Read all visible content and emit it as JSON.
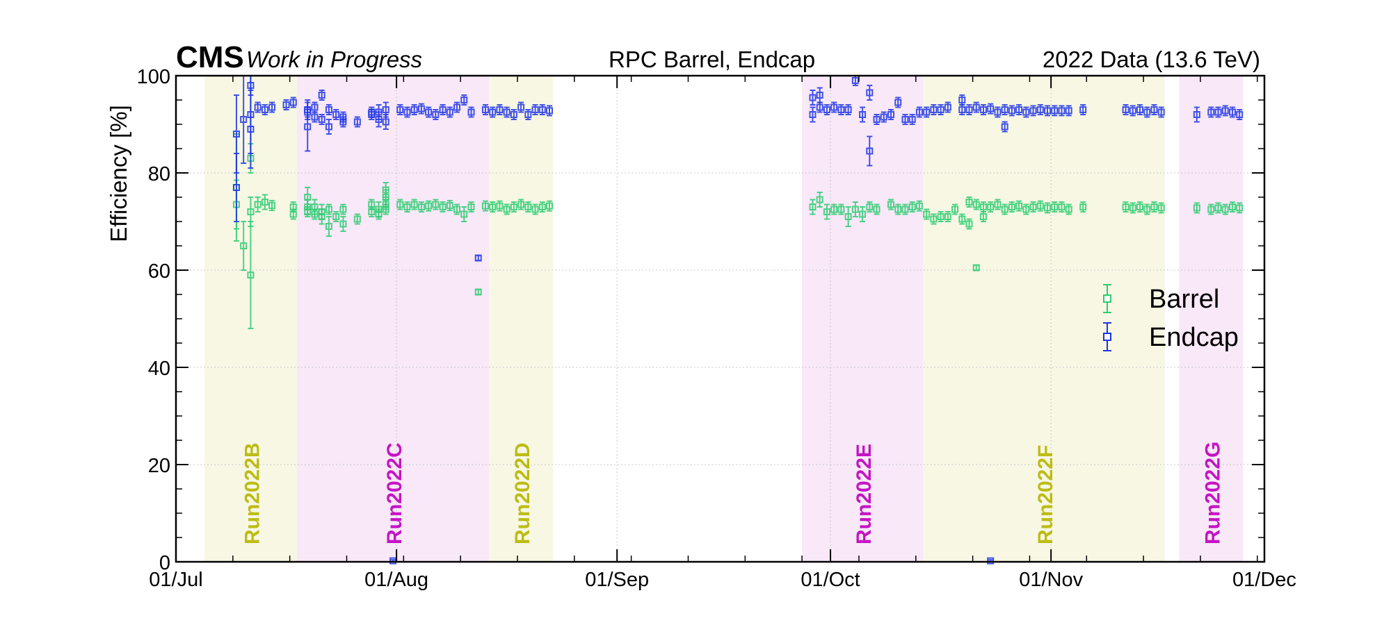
{
  "header": {
    "experiment": "CMS",
    "status": "Work in Progress",
    "energy": "2022 Data (13.6 TeV)"
  },
  "chart_data": {
    "type": "scatter",
    "title": "RPC Barrel, Endcap",
    "xlabel": "",
    "ylabel": "Efficiency [%]",
    "xlim": [
      "2022-07-01",
      "2022-12-01"
    ],
    "ylim": [
      0,
      100
    ],
    "x_ticks": [
      "01/Jul",
      "01/Aug",
      "01/Sep",
      "01/Oct",
      "01/Nov",
      "01/Dec"
    ],
    "y_ticks": [
      0,
      20,
      40,
      60,
      80,
      100
    ],
    "grid": true,
    "legend": {
      "position": "right",
      "entries": [
        "Barrel",
        "Endcap"
      ]
    },
    "run_periods": [
      {
        "name": "Run2022B",
        "start": "2022-07-05",
        "end": "2022-07-17",
        "color": "#bcbc14",
        "shade": "#f7f7e4"
      },
      {
        "name": "Run2022C",
        "start": "2022-07-18",
        "end": "2022-08-13",
        "color": "#c414c4",
        "shade": "#f8e8f8"
      },
      {
        "name": "Run2022D",
        "start": "2022-08-14",
        "end": "2022-08-22",
        "color": "#bcbc14",
        "shade": "#f7f7e4"
      },
      {
        "name": "Run2022E",
        "start": "2022-09-27",
        "end": "2022-10-13",
        "color": "#c414c4",
        "shade": "#f8e8f8"
      },
      {
        "name": "Run2022F",
        "start": "2022-10-14",
        "end": "2022-11-16",
        "color": "#bcbc14",
        "shade": "#f7f7e4"
      },
      {
        "name": "Run2022G",
        "start": "2022-11-19",
        "end": "2022-11-27",
        "color": "#c414c4",
        "shade": "#f8e8f8"
      }
    ],
    "series": [
      {
        "name": "Barrel",
        "color": "#2ecc71",
        "points": [
          [
            "2022-07-09",
            77,
            11
          ],
          [
            "2022-07-09",
            73.5,
            5
          ],
          [
            "2022-07-10",
            65,
            5
          ],
          [
            "2022-07-11",
            59,
            11
          ],
          [
            "2022-07-11",
            72,
            3
          ],
          [
            "2022-07-11",
            83,
            3
          ],
          [
            "2022-07-12",
            73.5,
            1.5
          ],
          [
            "2022-07-13",
            74,
            1.5
          ],
          [
            "2022-07-14",
            73.3,
            1
          ],
          [
            "2022-07-17",
            73,
            1
          ],
          [
            "2022-07-17",
            71.5,
            1
          ],
          [
            "2022-07-19",
            75,
            2
          ],
          [
            "2022-07-19",
            73,
            1.5
          ],
          [
            "2022-07-19",
            72,
            1
          ],
          [
            "2022-07-20",
            71.5,
            1
          ],
          [
            "2022-07-20",
            73,
            1.5
          ],
          [
            "2022-07-21",
            72,
            1.5
          ],
          [
            "2022-07-21",
            71,
            1.5
          ],
          [
            "2022-07-22",
            69,
            2
          ],
          [
            "2022-07-22",
            72.5,
            1
          ],
          [
            "2022-07-23",
            71,
            1
          ],
          [
            "2022-07-24",
            69.5,
            1.5
          ],
          [
            "2022-07-24",
            72.5,
            1
          ],
          [
            "2022-07-26",
            70.5,
            1
          ],
          [
            "2022-07-28",
            72,
            1
          ],
          [
            "2022-07-28",
            73.5,
            1
          ],
          [
            "2022-07-29",
            72.5,
            1.5
          ],
          [
            "2022-07-29",
            71.5,
            1
          ],
          [
            "2022-07-30",
            72.5,
            1
          ],
          [
            "2022-07-30",
            73.5,
            1
          ],
          [
            "2022-07-30",
            75,
            1.5
          ],
          [
            "2022-07-30",
            76.5,
            1.5
          ],
          [
            "2022-08-01",
            73.5,
            1
          ],
          [
            "2022-08-02",
            73,
            1
          ],
          [
            "2022-08-03",
            73.5,
            1
          ],
          [
            "2022-08-04",
            73,
            1
          ],
          [
            "2022-08-05",
            73.2,
            1
          ],
          [
            "2022-08-06",
            73.5,
            1
          ],
          [
            "2022-08-07",
            73,
            1
          ],
          [
            "2022-08-08",
            73.3,
            1
          ],
          [
            "2022-08-09",
            72.5,
            1
          ],
          [
            "2022-08-10",
            71.5,
            1.5
          ],
          [
            "2022-08-11",
            73,
            1
          ],
          [
            "2022-08-12",
            55.5,
            0.5
          ],
          [
            "2022-08-13",
            73.2,
            1
          ],
          [
            "2022-08-14",
            73,
            1
          ],
          [
            "2022-08-15",
            73.2,
            1
          ],
          [
            "2022-08-16",
            72.5,
            1
          ],
          [
            "2022-08-17",
            73,
            1
          ],
          [
            "2022-08-18",
            73.5,
            1
          ],
          [
            "2022-08-19",
            73,
            1
          ],
          [
            "2022-08-20",
            72.5,
            1
          ],
          [
            "2022-08-21",
            73,
            1
          ],
          [
            "2022-08-22",
            73.2,
            1
          ],
          [
            "2022-09-28",
            73,
            1.5
          ],
          [
            "2022-09-29",
            74.5,
            1.5
          ],
          [
            "2022-09-30",
            72,
            1.5
          ],
          [
            "2022-10-01",
            72.5,
            1
          ],
          [
            "2022-10-02",
            72.5,
            1
          ],
          [
            "2022-10-03",
            71,
            2
          ],
          [
            "2022-10-04",
            72.5,
            1.5
          ],
          [
            "2022-10-05",
            71.5,
            1.5
          ],
          [
            "2022-10-06",
            73,
            1
          ],
          [
            "2022-10-07",
            72.5,
            1
          ],
          [
            "2022-10-09",
            73.5,
            1
          ],
          [
            "2022-10-10",
            72.5,
            1
          ],
          [
            "2022-10-11",
            72.5,
            1
          ],
          [
            "2022-10-12",
            73,
            1
          ],
          [
            "2022-10-13",
            73.2,
            1
          ],
          [
            "2022-10-14",
            71.5,
            1
          ],
          [
            "2022-10-15",
            70.5,
            1
          ],
          [
            "2022-10-16",
            71,
            1
          ],
          [
            "2022-10-17",
            71,
            1
          ],
          [
            "2022-10-18",
            72.5,
            1
          ],
          [
            "2022-10-19",
            70.5,
            1
          ],
          [
            "2022-10-20",
            69.5,
            1
          ],
          [
            "2022-10-20",
            74,
            1
          ],
          [
            "2022-10-21",
            73.5,
            1
          ],
          [
            "2022-10-21",
            60.5,
            0.5
          ],
          [
            "2022-10-22",
            73,
            1
          ],
          [
            "2022-10-22",
            71,
            1
          ],
          [
            "2022-10-23",
            73,
            1
          ],
          [
            "2022-10-24",
            73.5,
            1
          ],
          [
            "2022-10-25",
            72.5,
            1
          ],
          [
            "2022-10-26",
            73,
            1
          ],
          [
            "2022-10-27",
            73.2,
            1
          ],
          [
            "2022-10-28",
            72.5,
            1
          ],
          [
            "2022-10-29",
            73,
            1
          ],
          [
            "2022-10-30",
            73.2,
            1
          ],
          [
            "2022-10-31",
            72.8,
            1
          ],
          [
            "2022-11-01",
            73,
            1
          ],
          [
            "2022-11-02",
            73,
            1
          ],
          [
            "2022-11-03",
            72.5,
            1
          ],
          [
            "2022-11-05",
            73,
            1
          ],
          [
            "2022-11-11",
            73,
            1
          ],
          [
            "2022-11-12",
            72.8,
            1
          ],
          [
            "2022-11-13",
            73,
            1
          ],
          [
            "2022-11-14",
            72.5,
            1
          ],
          [
            "2022-11-15",
            73,
            1
          ],
          [
            "2022-11-16",
            72.8,
            1
          ],
          [
            "2022-11-21",
            72.8,
            1
          ],
          [
            "2022-11-23",
            72.5,
            1
          ],
          [
            "2022-11-24",
            72.8,
            1
          ],
          [
            "2022-11-25",
            72.5,
            1
          ],
          [
            "2022-11-26",
            73,
            1
          ],
          [
            "2022-11-27",
            72.8,
            1
          ]
        ]
      },
      {
        "name": "Endcap",
        "color": "#1f35e6",
        "points": [
          [
            "2022-07-09",
            88,
            8
          ],
          [
            "2022-07-09",
            77,
            7
          ],
          [
            "2022-07-10",
            91,
            9
          ],
          [
            "2022-07-11",
            92,
            8
          ],
          [
            "2022-07-11",
            89,
            8
          ],
          [
            "2022-07-11",
            98,
            2
          ],
          [
            "2022-07-12",
            93.5,
            1
          ],
          [
            "2022-07-13",
            93,
            1
          ],
          [
            "2022-07-14",
            93.5,
            1
          ],
          [
            "2022-07-16",
            94,
            1
          ],
          [
            "2022-07-17",
            94.5,
            1
          ],
          [
            "2022-07-19",
            93,
            2
          ],
          [
            "2022-07-19",
            89.5,
            5
          ],
          [
            "2022-07-19",
            92.5,
            1
          ],
          [
            "2022-07-20",
            91.5,
            1
          ],
          [
            "2022-07-20",
            93.5,
            1
          ],
          [
            "2022-07-21",
            96,
            1
          ],
          [
            "2022-07-21",
            91,
            1
          ],
          [
            "2022-07-22",
            89.5,
            1.5
          ],
          [
            "2022-07-22",
            93,
            1
          ],
          [
            "2022-07-23",
            92,
            1
          ],
          [
            "2022-07-24",
            90.5,
            1
          ],
          [
            "2022-07-24",
            91.5,
            1
          ],
          [
            "2022-07-26",
            90.5,
            1
          ],
          [
            "2022-07-28",
            92,
            1
          ],
          [
            "2022-07-28",
            92.5,
            1
          ],
          [
            "2022-07-29",
            91,
            1.5
          ],
          [
            "2022-07-29",
            92.5,
            1.5
          ],
          [
            "2022-07-30",
            90.5,
            1.5
          ],
          [
            "2022-07-30",
            93,
            1.5
          ],
          [
            "2022-07-31",
            0.2,
            0.2
          ],
          [
            "2022-08-01",
            93,
            1
          ],
          [
            "2022-08-02",
            92.5,
            1
          ],
          [
            "2022-08-03",
            93,
            1
          ],
          [
            "2022-08-04",
            93.2,
            1
          ],
          [
            "2022-08-05",
            92.5,
            1
          ],
          [
            "2022-08-06",
            92,
            1
          ],
          [
            "2022-08-07",
            93,
            1
          ],
          [
            "2022-08-08",
            92.5,
            1
          ],
          [
            "2022-08-09",
            93.5,
            1
          ],
          [
            "2022-08-10",
            95,
            1
          ],
          [
            "2022-08-11",
            92.5,
            1
          ],
          [
            "2022-08-12",
            62.5,
            0.5
          ],
          [
            "2022-08-13",
            93,
            1
          ],
          [
            "2022-08-14",
            92.5,
            1
          ],
          [
            "2022-08-15",
            93,
            1
          ],
          [
            "2022-08-16",
            92.5,
            1
          ],
          [
            "2022-08-17",
            92,
            1
          ],
          [
            "2022-08-18",
            93.5,
            1
          ],
          [
            "2022-08-19",
            92,
            1
          ],
          [
            "2022-08-20",
            93,
            1
          ],
          [
            "2022-08-21",
            93,
            1
          ],
          [
            "2022-08-22",
            92.8,
            1
          ],
          [
            "2022-09-28",
            95.5,
            1.5
          ],
          [
            "2022-09-28",
            92,
            1.5
          ],
          [
            "2022-09-29",
            96,
            1.5
          ],
          [
            "2022-09-29",
            93.5,
            1
          ],
          [
            "2022-09-30",
            93,
            1
          ],
          [
            "2022-10-01",
            93.5,
            1
          ],
          [
            "2022-10-02",
            93,
            1
          ],
          [
            "2022-10-03",
            93,
            1
          ],
          [
            "2022-10-04",
            99,
            1
          ],
          [
            "2022-10-05",
            92,
            1.5
          ],
          [
            "2022-10-06",
            84.5,
            3
          ],
          [
            "2022-10-06",
            96.5,
            1.5
          ],
          [
            "2022-10-07",
            91,
            1
          ],
          [
            "2022-10-08",
            91.5,
            1
          ],
          [
            "2022-10-09",
            92,
            1
          ],
          [
            "2022-10-10",
            94.5,
            1
          ],
          [
            "2022-10-11",
            91,
            1
          ],
          [
            "2022-10-12",
            91,
            1
          ],
          [
            "2022-10-13",
            92.5,
            1
          ],
          [
            "2022-10-14",
            92.5,
            1
          ],
          [
            "2022-10-15",
            93,
            1
          ],
          [
            "2022-10-16",
            93,
            1
          ],
          [
            "2022-10-17",
            93.5,
            1
          ],
          [
            "2022-10-19",
            95,
            1
          ],
          [
            "2022-10-19",
            93,
            1
          ],
          [
            "2022-10-20",
            93,
            1
          ],
          [
            "2022-10-21",
            93.5,
            1
          ],
          [
            "2022-10-22",
            93,
            1
          ],
          [
            "2022-10-23",
            93.2,
            1
          ],
          [
            "2022-10-23",
            0.2,
            0.2
          ],
          [
            "2022-10-24",
            92.5,
            1
          ],
          [
            "2022-10-25",
            89.5,
            1
          ],
          [
            "2022-10-25",
            93,
            1
          ],
          [
            "2022-10-26",
            92.8,
            1
          ],
          [
            "2022-10-27",
            93,
            1
          ],
          [
            "2022-10-28",
            92.5,
            1
          ],
          [
            "2022-10-29",
            92.8,
            1
          ],
          [
            "2022-10-30",
            93,
            1
          ],
          [
            "2022-10-31",
            92.8,
            1
          ],
          [
            "2022-11-01",
            92.8,
            1
          ],
          [
            "2022-11-02",
            92.8,
            1
          ],
          [
            "2022-11-03",
            92.8,
            1
          ],
          [
            "2022-11-05",
            93,
            1
          ],
          [
            "2022-11-11",
            93,
            1
          ],
          [
            "2022-11-12",
            92.8,
            1
          ],
          [
            "2022-11-13",
            93,
            1
          ],
          [
            "2022-11-14",
            92.5,
            1
          ],
          [
            "2022-11-15",
            93,
            1
          ],
          [
            "2022-11-16",
            92.5,
            1
          ],
          [
            "2022-11-21",
            92,
            1.5
          ],
          [
            "2022-11-23",
            92.5,
            1
          ],
          [
            "2022-11-24",
            92.5,
            1
          ],
          [
            "2022-11-25",
            92.8,
            1
          ],
          [
            "2022-11-26",
            92.5,
            1
          ],
          [
            "2022-11-27",
            92,
            1
          ]
        ]
      }
    ]
  }
}
